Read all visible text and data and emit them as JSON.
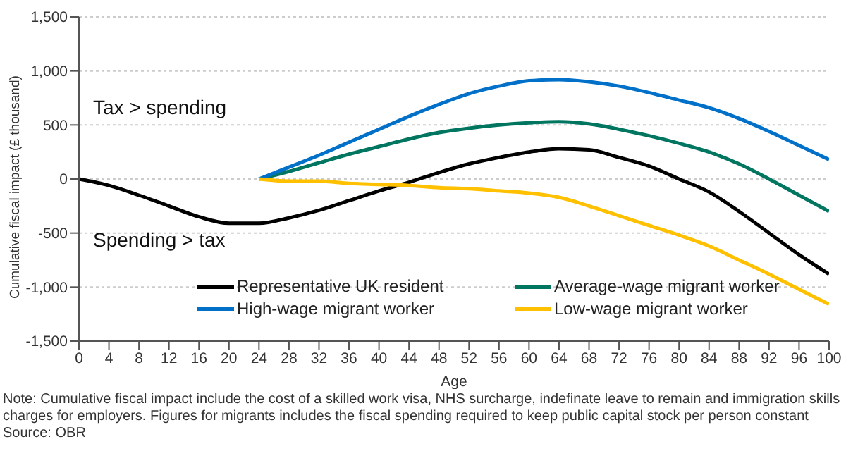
{
  "chart_data": {
    "type": "line",
    "xlabel": "Age",
    "ylabel": "Cumulative fiscal impact (£ thousand)",
    "x": [
      0,
      4,
      8,
      12,
      16,
      20,
      24,
      28,
      32,
      36,
      40,
      44,
      48,
      52,
      56,
      60,
      64,
      68,
      72,
      76,
      80,
      84,
      88,
      92,
      96,
      100
    ],
    "series": [
      {
        "name": "Representative UK resident",
        "color": "#000000",
        "values": [
          0,
          -60,
          -150,
          -250,
          -350,
          -410,
          -410,
          -360,
          -290,
          -200,
          -110,
          -30,
          60,
          140,
          200,
          250,
          280,
          270,
          200,
          120,
          0,
          -120,
          -300,
          -500,
          -700,
          -880
        ]
      },
      {
        "name": "Average-wage migrant worker",
        "color": "#007560",
        "values": [
          null,
          null,
          null,
          null,
          null,
          null,
          0,
          70,
          150,
          230,
          300,
          370,
          430,
          470,
          500,
          520,
          530,
          510,
          460,
          400,
          330,
          250,
          140,
          0,
          -150,
          -300
        ]
      },
      {
        "name": "High-wage migrant worker",
        "color": "#0070c8",
        "values": [
          null,
          null,
          null,
          null,
          null,
          null,
          0,
          110,
          220,
          340,
          460,
          580,
          690,
          790,
          860,
          910,
          920,
          900,
          860,
          800,
          730,
          660,
          560,
          440,
          310,
          180
        ]
      },
      {
        "name": "Low-wage migrant worker",
        "color": "#ffc000",
        "values": [
          null,
          null,
          null,
          null,
          null,
          null,
          0,
          -20,
          -20,
          -40,
          -50,
          -60,
          -80,
          -90,
          -110,
          -130,
          -170,
          -250,
          -340,
          -430,
          -520,
          -620,
          -750,
          -880,
          -1020,
          -1160
        ]
      }
    ],
    "xlim": [
      0,
      100
    ],
    "xticks": [
      0,
      4,
      8,
      12,
      16,
      20,
      24,
      28,
      32,
      36,
      40,
      44,
      48,
      52,
      56,
      60,
      64,
      68,
      72,
      76,
      80,
      84,
      88,
      92,
      96,
      100
    ],
    "ylim": [
      -1500,
      1500
    ],
    "yticks": [
      {
        "value": -1500,
        "label": "-1,500"
      },
      {
        "value": -1000,
        "label": "-1,000"
      },
      -500,
      0,
      500,
      {
        "value": 1000,
        "label": "1,000"
      },
      {
        "value": 1500,
        "label": "1,500"
      }
    ],
    "grid": "y",
    "legend": "bottom",
    "marker": "none",
    "line_style": "solid",
    "annotations": [
      "Tax > spending",
      "Spending > tax",
      "Note: Cumulative fiscal impact include the cost of a skilled work visa, NHS surcharge, indefinate leave to remain and immigration skills charges for employers. Figures for migrants includes the fiscal spending required to keep public capital stock per person constant",
      "Source: OBR"
    ]
  }
}
